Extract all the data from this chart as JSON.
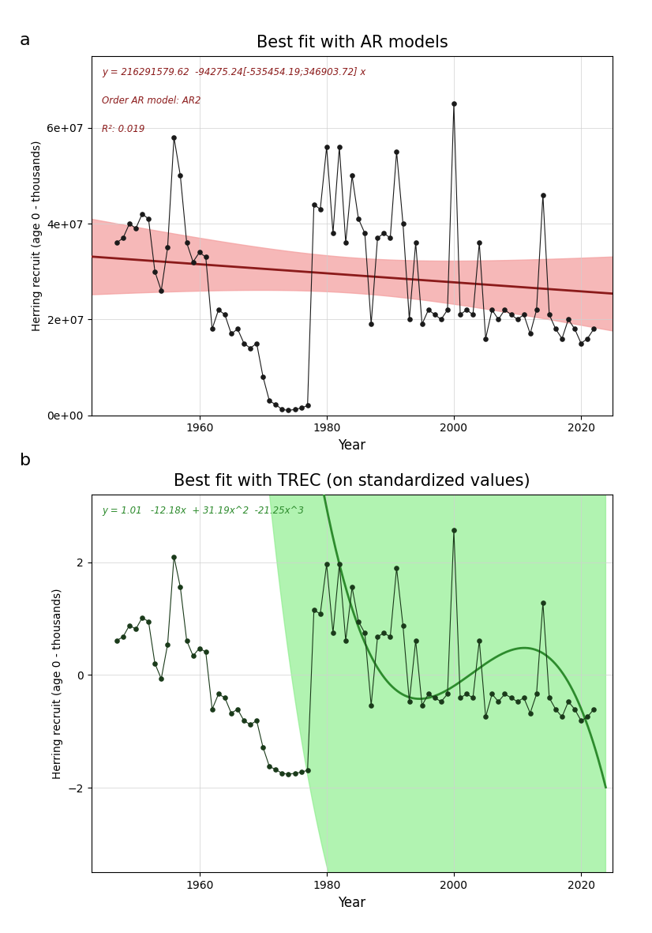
{
  "title_a": "Best fit with AR models",
  "title_b": "Best fit with TREC (on standardized values)",
  "ylabel": "Herring recruit (age 0 - thousands)",
  "xlabel": "Year",
  "label_a": "a",
  "label_b": "b",
  "annotation_a_line1": "y = 216291579.62  -94275.24[-535454.19;346903.72] x",
  "annotation_a_line2": "Order AR model: AR2",
  "annotation_a_line3": "R²: 0.019",
  "annotation_b": "y = 1.01   -12.18x  + 31.19x^2  -21.25x^3",
  "intercept_a": 216291579.62,
  "slope_a": -94275.24,
  "coeff_b": [
    1.01,
    -12.18,
    31.19,
    -21.25
  ],
  "color_trend_a": "#8B1A1A",
  "color_fill_a": "#f4a0a0",
  "color_trend_b": "#2d8b2d",
  "color_fill_b": "#90ee90",
  "color_data_a": "#1a1a1a",
  "color_data_b": "#1a3a1a",
  "years_a": [
    1947,
    1948,
    1949,
    1950,
    1951,
    1952,
    1953,
    1954,
    1955,
    1956,
    1957,
    1958,
    1959,
    1960,
    1961,
    1962,
    1963,
    1964,
    1965,
    1966,
    1967,
    1968,
    1969,
    1970,
    1971,
    1972,
    1973,
    1974,
    1975,
    1976,
    1977,
    1978,
    1979,
    1980,
    1981,
    1982,
    1983,
    1984,
    1985,
    1986,
    1987,
    1988,
    1989,
    1990,
    1991,
    1992,
    1993,
    1994,
    1995,
    1996,
    1997,
    1998,
    1999,
    2000,
    2001,
    2002,
    2003,
    2004,
    2005,
    2006,
    2007,
    2008,
    2009,
    2010,
    2011,
    2012,
    2013,
    2014,
    2015,
    2016,
    2017,
    2018,
    2019,
    2020,
    2021,
    2022
  ],
  "values_a": [
    36000000.0,
    37000000.0,
    40000000.0,
    39000000.0,
    42000000.0,
    41000000.0,
    30000000.0,
    26000000.0,
    35000000.0,
    58000000.0,
    50000000.0,
    36000000.0,
    32000000.0,
    34000000.0,
    33000000.0,
    18000000.0,
    22000000.0,
    21000000.0,
    17000000.0,
    18000000.0,
    15000000.0,
    14000000.0,
    15000000.0,
    8000000.0,
    3000000.0,
    2200000.0,
    1200000.0,
    1000000.0,
    1200000.0,
    1500000.0,
    2000000.0,
    44000000.0,
    43000000.0,
    56000000.0,
    38000000.0,
    56000000.0,
    36000000.0,
    50000000.0,
    41000000.0,
    38000000.0,
    19000000.0,
    37000000.0,
    38000000.0,
    37000000.0,
    55000000.0,
    40000000.0,
    20000000.0,
    36000000.0,
    19000000.0,
    22000000.0,
    21000000.0,
    20000000.0,
    22000000.0,
    65000000.0,
    21000000.0,
    22000000.0,
    21000000.0,
    36000000.0,
    16000000.0,
    22000000.0,
    20000000.0,
    22000000.0,
    21000000.0,
    20000000.0,
    21000000.0,
    17000000.0,
    22000000.0,
    46000000.0,
    21000000.0,
    18000000.0,
    16000000.0,
    20000000.0,
    18000000.0,
    15000000.0,
    16000000.0,
    18000000.0
  ],
  "xlim": [
    1943,
    2025
  ],
  "xticks": [
    1960,
    1980,
    2000,
    2020
  ],
  "ylim_a": [
    0,
    75000000.0
  ],
  "yticks_a": [
    0,
    20000000.0,
    40000000.0,
    60000000.0
  ],
  "ylim_b": [
    -3.5,
    3.2
  ],
  "yticks_b": [
    -2,
    0,
    2
  ],
  "background_color": "#ffffff",
  "panel_background": "#ffffff",
  "grid_color": "#d0d0d0"
}
